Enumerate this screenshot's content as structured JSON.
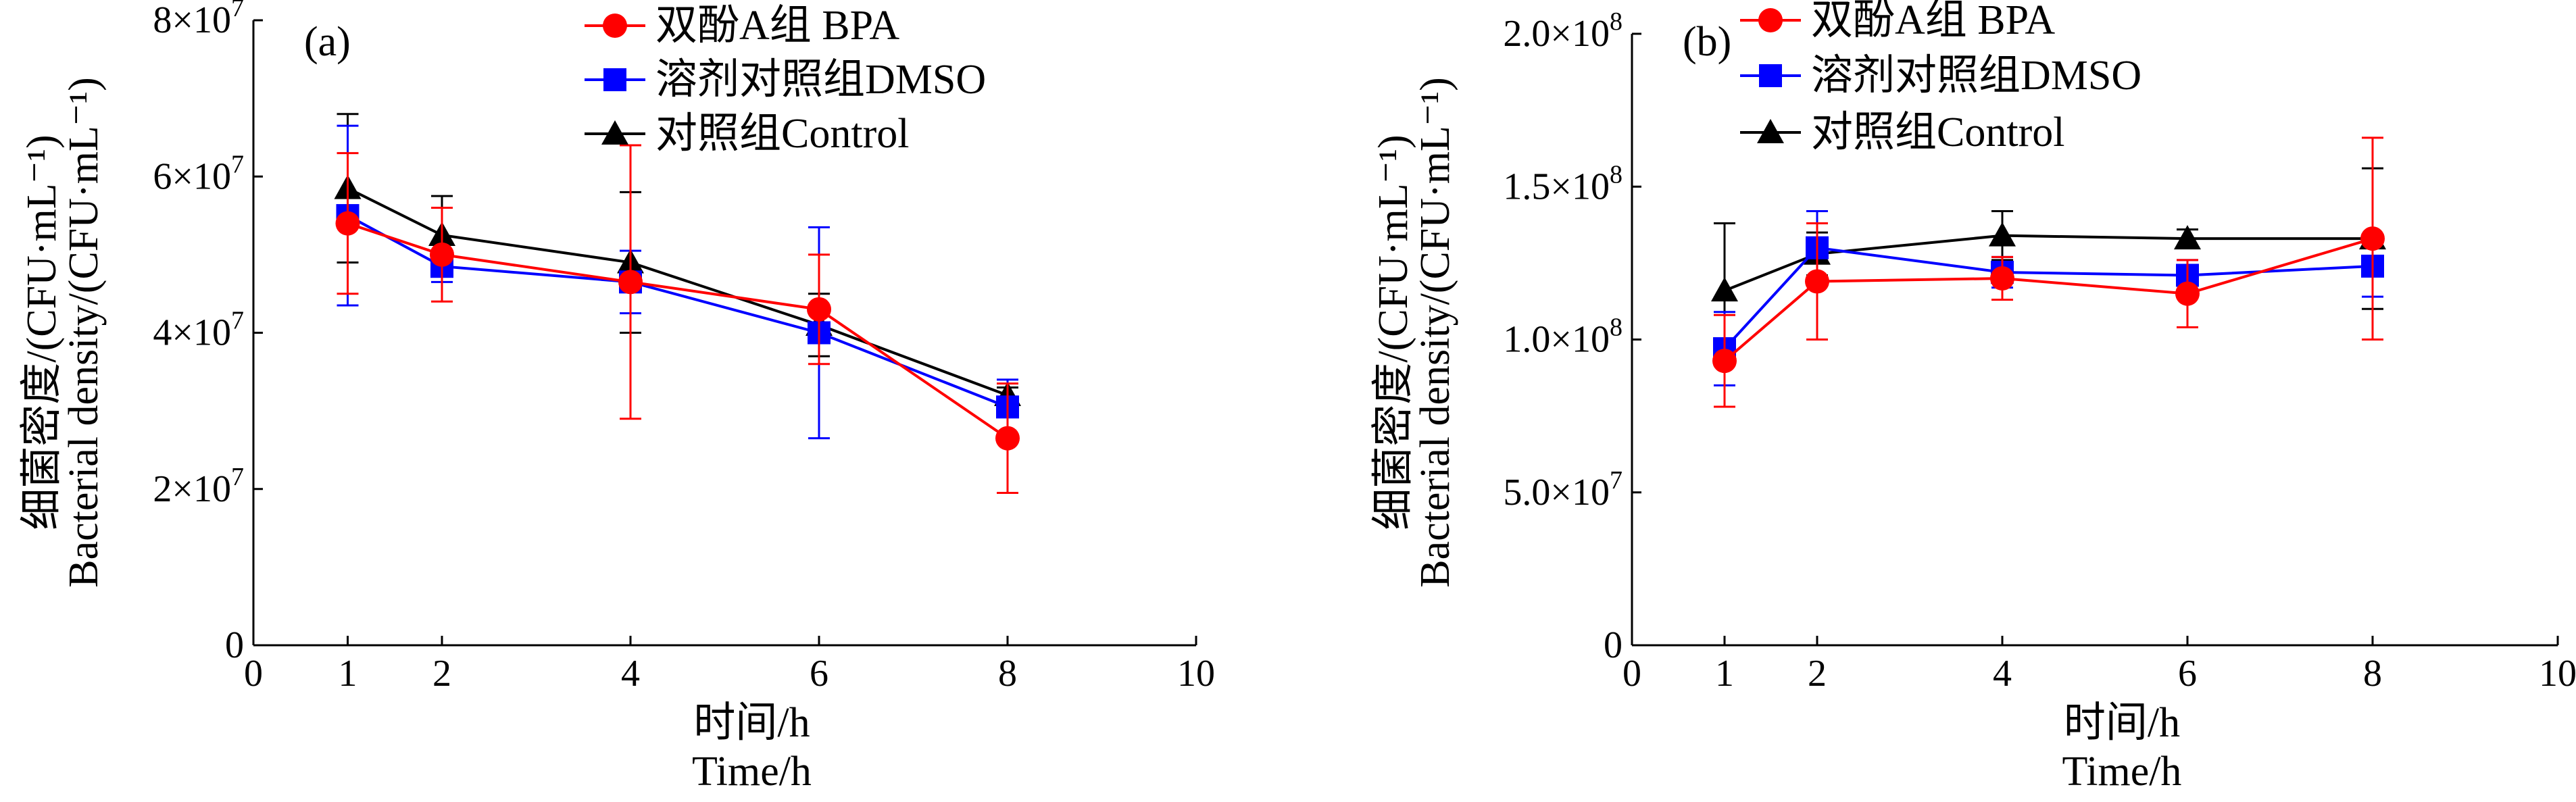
{
  "chart_data": [
    {
      "panel": "(a)",
      "type": "line",
      "xlabel_zh": "时间/h",
      "xlabel_en": "Time/h",
      "ylabel_zh": "细菌密度/(CFU·mL⁻¹)",
      "ylabel_en": "Bacterial density/(CFU·mL⁻¹)",
      "xlim": [
        0,
        10
      ],
      "ylim": [
        0,
        80000000
      ],
      "xticks": [
        0,
        1,
        2,
        4,
        6,
        8,
        10
      ],
      "xtick_labels": [
        "0",
        "1",
        "2",
        "4",
        "6",
        "8",
        "10"
      ],
      "yticks": [
        0,
        20000000,
        40000000,
        60000000,
        80000000
      ],
      "ytick_labels": [
        {
          "base": "0",
          "exp": ""
        },
        {
          "base": "2×10",
          "exp": "7"
        },
        {
          "base": "4×10",
          "exp": "7"
        },
        {
          "base": "6×10",
          "exp": "7"
        },
        {
          "base": "8×10",
          "exp": "7"
        }
      ],
      "legend_position": "top-center",
      "series": [
        {
          "name": "双酚A组 BPA",
          "color": "#ff0000",
          "marker": "circle",
          "x": [
            1,
            2,
            4,
            6,
            8
          ],
          "y": [
            54000000,
            50000000,
            46500000,
            43000000,
            26500000
          ],
          "err": [
            9000000,
            6000000,
            17500000,
            7000000,
            7000000
          ]
        },
        {
          "name": "溶剂对照组DMSO",
          "color": "#0000ff",
          "marker": "square",
          "x": [
            1,
            2,
            4,
            6,
            8
          ],
          "y": [
            55000000,
            48500000,
            46500000,
            40000000,
            30500000
          ],
          "err": [
            11500000,
            2000000,
            4000000,
            13500000,
            3500000
          ]
        },
        {
          "name": "对照组Control",
          "color": "#000000",
          "marker": "triangle",
          "x": [
            1,
            2,
            4,
            6,
            8
          ],
          "y": [
            58500000,
            52500000,
            49000000,
            41000000,
            32000000
          ],
          "err": [
            9500000,
            5000000,
            9000000,
            4000000,
            1000000
          ]
        }
      ]
    },
    {
      "panel": "(b)",
      "type": "line",
      "xlabel_zh": "时间/h",
      "xlabel_en": "Time/h",
      "ylabel_zh": "细菌密度/(CFU·mL⁻¹)",
      "ylabel_en": "Bacterial density/(CFU·mL⁻¹)",
      "xlim": [
        0,
        10
      ],
      "ylim": [
        0,
        200000000
      ],
      "xticks": [
        0,
        1,
        2,
        4,
        6,
        8,
        10
      ],
      "xtick_labels": [
        "0",
        "1",
        "2",
        "4",
        "6",
        "8",
        "10"
      ],
      "yticks": [
        0,
        50000000,
        100000000,
        150000000,
        200000000
      ],
      "ytick_labels": [
        {
          "base": "0",
          "exp": ""
        },
        {
          "base": "5.0×10",
          "exp": "7"
        },
        {
          "base": "1.0×10",
          "exp": "8"
        },
        {
          "base": "1.5×10",
          "exp": "8"
        },
        {
          "base": "2.0×10",
          "exp": "8"
        }
      ],
      "legend_position": "top-center",
      "series": [
        {
          "name": "双酚A组 BPA",
          "color": "#ff0000",
          "marker": "circle",
          "x": [
            1,
            2,
            4,
            6,
            8
          ],
          "y": [
            93000000,
            119000000,
            120000000,
            115000000,
            133000000
          ],
          "err": [
            15000000,
            19000000,
            7000000,
            11000000,
            33000000
          ]
        },
        {
          "name": "溶剂对照组DMSO",
          "color": "#0000ff",
          "marker": "square",
          "x": [
            1,
            2,
            4,
            6,
            8
          ],
          "y": [
            97000000,
            130000000,
            122000000,
            121000000,
            124000000
          ],
          "err": [
            12000000,
            12000000,
            5000000,
            5000000,
            10000000
          ]
        },
        {
          "name": "对照组Control",
          "color": "#000000",
          "marker": "triangle",
          "x": [
            1,
            2,
            4,
            6,
            8
          ],
          "y": [
            116000000,
            128000000,
            134000000,
            133000000,
            133000000
          ],
          "err": [
            22000000,
            7000000,
            8000000,
            3000000,
            23000000
          ]
        }
      ]
    }
  ]
}
